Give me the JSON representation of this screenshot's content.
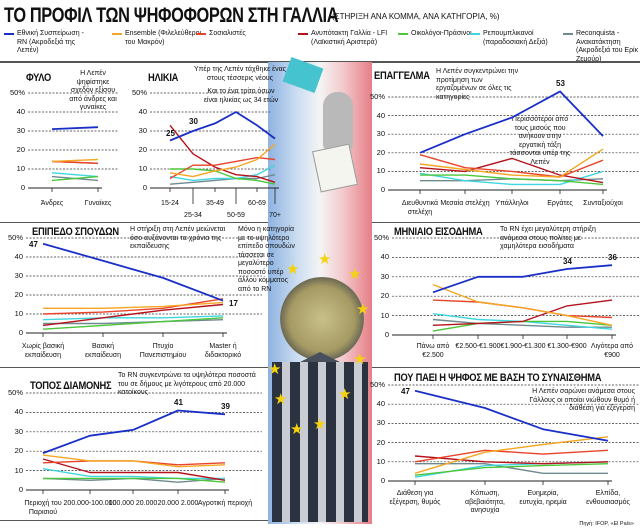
{
  "header": {
    "title": "ΤΟ ΠΡΟΦΙΛ ΤΩΝ ΨΗΦΟΦΟΡΩΝ ΣΤΗ ΓΑΛΛΙΑ",
    "subtitle": "(ΣΤΗΡΙΞΗ ΑΝΑ ΚΟΜΜΑ, ΑΝΑ ΚΑΤΗΓΟΡΙΑ, %)"
  },
  "legend": [
    {
      "key": "rn",
      "label": "Εθνική Συσπείρωση - RN (Ακροδεξιά της Λεπέν)",
      "color": "#1a2fc8"
    },
    {
      "key": "ens",
      "label": "Ensemble (Φιλελεύθεροι του Μακρόν)",
      "color": "#f5a623"
    },
    {
      "key": "ps",
      "label": "Σοσιαλιστές",
      "color": "#e8442a"
    },
    {
      "key": "lfi",
      "label": "Ανυπότακτη Γαλλία - LFI (Λαϊκιστική Αριστερά)",
      "color": "#b5121b"
    },
    {
      "key": "eco",
      "label": "Οικολόγοι-Πράσινοι",
      "color": "#4cc63a"
    },
    {
      "key": "rep",
      "label": "Ρεπουμπλικανοί (παραδοσιακή Δεξιά)",
      "color": "#3fd6e0"
    },
    {
      "key": "rec",
      "label": "Reconquista - Ανακατάκτηση (Ακροδεξιά του Ερίκ Ζεμούρ)",
      "color": "#6f8a8f"
    }
  ],
  "y_ticks": [
    "50%",
    "40",
    "30",
    "20",
    "10",
    "0"
  ],
  "chart_data": [
    {
      "id": "gender",
      "type": "line",
      "title": "ΦΥΛΟ",
      "ylim": [
        0,
        50
      ],
      "grid": true,
      "categories": [
        "Άνδρες",
        "Γυναίκες"
      ],
      "series": [
        {
          "key": "rn",
          "values": [
            31,
            32
          ]
        },
        {
          "key": "ens",
          "values": [
            14,
            15
          ]
        },
        {
          "key": "ps",
          "values": [
            14,
            13
          ]
        },
        {
          "key": "lfi",
          "values": [
            14,
            13
          ]
        },
        {
          "key": "eco",
          "values": [
            4,
            6
          ]
        },
        {
          "key": "rep",
          "values": [
            8,
            6
          ]
        },
        {
          "key": "rec",
          "values": [
            6,
            4
          ]
        }
      ],
      "note": "Η Λεπέν ψηφίστηκε σχεδόν εξίσου από άνδρες και γυναίκες",
      "data_labels": []
    },
    {
      "id": "age",
      "type": "line",
      "title": "ΗΛΙΚΙΑ",
      "ylim": [
        0,
        50
      ],
      "grid": true,
      "categories": [
        "15-24",
        "25-34",
        "35-49",
        "50-59",
        "60-69",
        "70+"
      ],
      "series": [
        {
          "key": "rn",
          "values": [
            25,
            30,
            34,
            40,
            33,
            26
          ]
        },
        {
          "key": "ens",
          "values": [
            8,
            6,
            9,
            11,
            15,
            23
          ]
        },
        {
          "key": "ps",
          "values": [
            5,
            12,
            12,
            14,
            16,
            15
          ]
        },
        {
          "key": "lfi",
          "values": [
            33,
            18,
            11,
            7,
            6,
            3
          ]
        },
        {
          "key": "eco",
          "values": [
            10,
            10,
            9,
            5,
            4,
            2
          ]
        },
        {
          "key": "rep",
          "values": [
            6,
            4,
            5,
            5,
            7,
            12
          ]
        },
        {
          "key": "rec",
          "values": [
            2,
            3,
            4,
            5,
            5,
            7
          ]
        }
      ],
      "note": "Υπέρ της Λεπέν τάχθηκε ένας στους τέσσερις νέους",
      "note2": "Και το ένα τρίτο όσων είναι ηλικίας ως 34 ετών",
      "data_labels": [
        "25",
        "30"
      ]
    },
    {
      "id": "job",
      "type": "line",
      "title": "ΕΠΑΓΓΕΛΜΑ",
      "ylim": [
        0,
        50
      ],
      "grid": true,
      "categories": [
        "Διευθυντικά στελέχη",
        "Μεσαία στελέχη",
        "Υπάλληλοι",
        "Εργάτες",
        "Συνταξιούχοι"
      ],
      "series": [
        {
          "key": "rn",
          "values": [
            20,
            30,
            39,
            53,
            29
          ]
        },
        {
          "key": "ens",
          "values": [
            14,
            11,
            8,
            7,
            22
          ]
        },
        {
          "key": "ps",
          "values": [
            19,
            12,
            10,
            7,
            16
          ]
        },
        {
          "key": "lfi",
          "values": [
            12,
            10,
            17,
            8,
            4
          ]
        },
        {
          "key": "eco",
          "values": [
            8,
            8,
            6,
            5,
            3
          ]
        },
        {
          "key": "rep",
          "values": [
            9,
            5,
            3,
            3,
            10
          ]
        },
        {
          "key": "rec",
          "values": [
            5,
            5,
            6,
            5,
            6
          ]
        }
      ],
      "note": "Η Λεπέν συγκεντρώνει την προτίμηση των εργαζομένων σε όλες τις κατηγορίες",
      "note2": "Περισσότεροι από τους μισούς που ανήκουν στην εργατική τάξη τάσσονται υπέρ της Λεπέν",
      "data_labels": [
        "53"
      ]
    },
    {
      "id": "edu",
      "type": "line",
      "title": "ΕΠΙΠΕΔΟ ΣΠΟΥΔΩΝ",
      "ylim": [
        0,
        50
      ],
      "grid": true,
      "categories": [
        "Χωρίς βασική εκπαίδευση",
        "Βασική εκπαίδευση",
        "Πτυχίο Πανεπιστημίου",
        "Master ή διδακτορικό"
      ],
      "series": [
        {
          "key": "rn",
          "values": [
            47,
            38,
            29,
            17
          ]
        },
        {
          "key": "ens",
          "values": [
            13,
            13,
            14,
            16
          ]
        },
        {
          "key": "ps",
          "values": [
            10,
            11,
            13,
            18
          ]
        },
        {
          "key": "lfi",
          "values": [
            4,
            8,
            12,
            15
          ]
        },
        {
          "key": "eco",
          "values": [
            2,
            4,
            6,
            8
          ]
        },
        {
          "key": "rep",
          "values": [
            7,
            8,
            8,
            9
          ]
        },
        {
          "key": "rec",
          "values": [
            5,
            5,
            6,
            7
          ]
        }
      ],
      "note": "Η στήριξη στη Λεπέν μειώνεται όσο αυξάνονται τα χρόνια της εκπαίδευσης",
      "note2": "Μόνο η κατηγορία με το υψηλότερο επίπεδο σπουδών τάσσεται σε μεγαλύτερο ποσοστό υπέρ άλλου κόμματος από το RN",
      "data_labels": [
        "47",
        "17"
      ]
    },
    {
      "id": "income",
      "type": "line",
      "title": "ΜΗΝΙΑΙΟ ΕΙΣΟΔΗΜΑ",
      "ylim": [
        0,
        50
      ],
      "grid": true,
      "categories": [
        "Πάνω από €2.500",
        "€2.500-€1.900",
        "€1.900-€1.300",
        "€1.300-€900",
        "Λιγότερα από €900"
      ],
      "series": [
        {
          "key": "rn",
          "values": [
            22,
            30,
            30,
            34,
            36
          ]
        },
        {
          "key": "ens",
          "values": [
            26,
            17,
            14,
            10,
            5
          ]
        },
        {
          "key": "ps",
          "values": [
            18,
            17,
            14,
            10,
            9
          ]
        },
        {
          "key": "lfi",
          "values": [
            5,
            6,
            7,
            15,
            18
          ]
        },
        {
          "key": "eco",
          "values": [
            2,
            6,
            7,
            7,
            5
          ]
        },
        {
          "key": "rep",
          "values": [
            11,
            8,
            7,
            5,
            3
          ]
        },
        {
          "key": "rec",
          "values": [
            8,
            6,
            5,
            4,
            4
          ]
        }
      ],
      "note": "Το RN έχει μεγαλύτερη στήριξη ανάμεσα στους πολίτες με χαμηλότερα εισοδήματα",
      "data_labels": [
        "34",
        "36"
      ]
    },
    {
      "id": "residence",
      "type": "line",
      "title": "ΤΟΠΟΣ ΔΙΑΜΟΝΗΣ",
      "ylim": [
        0,
        50
      ],
      "grid": true,
      "categories": [
        "Περιοχή του Παρισιού",
        "200.000-100.000",
        "100.000 20.000",
        "20.000 2.000",
        "Αγροτική περιοχή"
      ],
      "series": [
        {
          "key": "rn",
          "values": [
            19,
            28,
            31,
            41,
            39
          ]
        },
        {
          "key": "ens",
          "values": [
            18,
            15,
            15,
            12,
            13
          ]
        },
        {
          "key": "ps",
          "values": [
            14,
            15,
            15,
            13,
            14
          ]
        },
        {
          "key": "lfi",
          "values": [
            16,
            9,
            9,
            9,
            5
          ]
        },
        {
          "key": "eco",
          "values": [
            6,
            6,
            6,
            6,
            4
          ]
        },
        {
          "key": "rep",
          "values": [
            11,
            7,
            7,
            6,
            6
          ]
        },
        {
          "key": "rec",
          "values": [
            6,
            5,
            6,
            4,
            6
          ]
        }
      ],
      "note": "Το RN συγκεντρώνει τα υψηλότερα ποσοστά του σε δήμους με λιγότερους από 20.000 κατοίκους",
      "data_labels": [
        "41",
        "39"
      ]
    },
    {
      "id": "emotion",
      "type": "line",
      "title": "ΠΟΥ ΠΑΕΙ Η ΨΗΦΟΣ ΜΕ ΒΑΣΗ ΤΟ ΣΥΝΑΙΣΘΗΜΑ",
      "ylim": [
        0,
        50
      ],
      "grid": true,
      "categories": [
        "Διάθεση για εξέγερση, θυμός",
        "Κόπωση, αβεβαιότητα, ανησυχία",
        "Ευημερία, ευτυχία, ηρεμία",
        "Ελπίδα, ενθουσιασμός"
      ],
      "series": [
        {
          "key": "rn",
          "values": [
            47,
            38,
            27,
            21
          ]
        },
        {
          "key": "ens",
          "values": [
            4,
            15,
            19,
            23
          ]
        },
        {
          "key": "ps",
          "values": [
            10,
            16,
            14,
            16
          ]
        },
        {
          "key": "lfi",
          "values": [
            13,
            10,
            9,
            10
          ]
        },
        {
          "key": "eco",
          "values": [
            3,
            7,
            8,
            9
          ]
        },
        {
          "key": "rep",
          "values": [
            2,
            8,
            9,
            10
          ]
        },
        {
          "key": "rec",
          "values": [
            9,
            9,
            4,
            4
          ]
        }
      ],
      "note": "Η Λεπέν σαρώνει ανάμεσα στους Γάλλους οι οποίοι νιώθουν θυμό ή διάθεση για εξέγερση",
      "data_labels": [
        "47"
      ]
    }
  ],
  "source": "Πηγή: IFOP, «El País»"
}
